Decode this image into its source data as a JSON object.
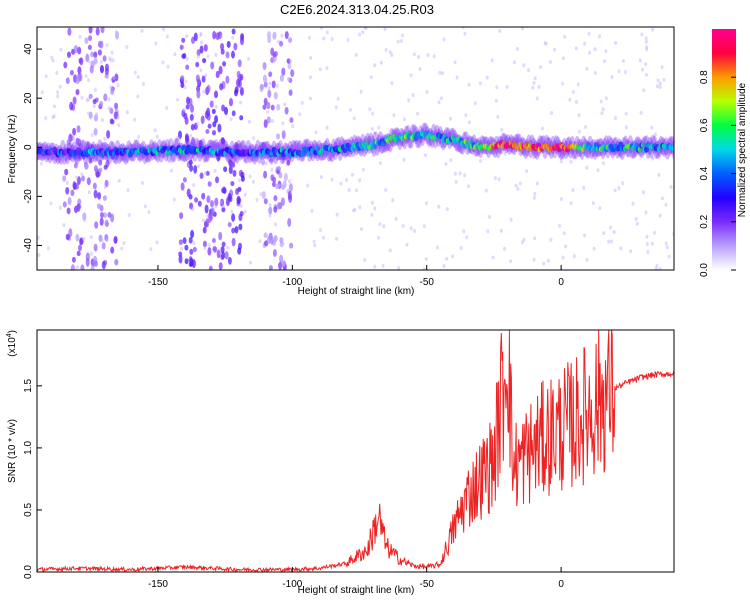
{
  "title": "C2E6.2024.313.04.25.R03",
  "chart_data": [
    {
      "type": "heatmap",
      "title": "C2E6.2024.313.04.25.R03",
      "xlabel": "Height of straight line (km)",
      "ylabel": "Frequency (Hz)",
      "xlim": [
        -195,
        42
      ],
      "ylim": [
        -50,
        49
      ],
      "xticks": [
        -150,
        -100,
        -50,
        0
      ],
      "yticks": [
        40,
        20,
        0,
        -20,
        -40
      ],
      "colorbar": {
        "label": "Normalized spectral amplitude",
        "range": [
          0.0,
          1.0
        ],
        "ticks": [
          0.0,
          0.2,
          0.4,
          0.6,
          0.8
        ],
        "colormap": [
          "#ffffff",
          "#b9a0ff",
          "#7a2cff",
          "#2200ff",
          "#0060ff",
          "#00d8e8",
          "#00ff40",
          "#b8ff00",
          "#ff9a00",
          "#ff0040",
          "#ff0090"
        ]
      },
      "ridge": {
        "x": [
          -195,
          -180,
          -160,
          -140,
          -120,
          -100,
          -85,
          -70,
          -60,
          -50,
          -40,
          -30,
          -20,
          -10,
          0,
          10,
          20,
          30,
          42
        ],
        "frequency_hz": [
          -2,
          -2,
          -2,
          -1,
          -2,
          -2,
          -1,
          1,
          4,
          5,
          3,
          0,
          1,
          0,
          0,
          0,
          0,
          0,
          0
        ],
        "amplitude": [
          0.3,
          0.35,
          0.4,
          0.45,
          0.35,
          0.4,
          0.45,
          0.5,
          0.55,
          0.5,
          0.5,
          0.55,
          0.95,
          0.85,
          0.9,
          0.55,
          0.5,
          0.5,
          0.45
        ]
      },
      "scatter_bands": [
        {
          "x_range": [
            -185,
            -165
          ],
          "amplitude": 0.1
        },
        {
          "x_range": [
            -142,
            -118
          ],
          "amplitude": 0.15
        },
        {
          "x_range": [
            -112,
            -100
          ],
          "amplitude": 0.08
        }
      ]
    },
    {
      "type": "line",
      "xlabel": "Height of straight line (km)",
      "ylabel": "SNR (10 * v/v)",
      "y_multiplier_label": "(x10",
      "y_multiplier_exp": "4",
      "xlim": [
        -195,
        42
      ],
      "ylim": [
        0.0,
        1.95
      ],
      "xticks": [
        -150,
        -100,
        -50,
        0
      ],
      "yticks": [
        0.0,
        0.5,
        1.0,
        1.5
      ],
      "line_color": "#ee2222",
      "x": [
        -195,
        -180,
        -160,
        -140,
        -120,
        -100,
        -90,
        -80,
        -72,
        -68,
        -65,
        -60,
        -55,
        -50,
        -45,
        -40,
        -35,
        -30,
        -25,
        -21,
        -20,
        -18,
        -15,
        -10,
        -5,
        0,
        5,
        10,
        15,
        20,
        25,
        30,
        35,
        42
      ],
      "values": [
        0.02,
        0.03,
        0.02,
        0.04,
        0.02,
        0.02,
        0.03,
        0.07,
        0.18,
        0.45,
        0.2,
        0.1,
        0.05,
        0.04,
        0.06,
        0.35,
        0.6,
        0.75,
        0.9,
        1.6,
        1.95,
        0.85,
        0.9,
        1.0,
        1.1,
        1.15,
        1.2,
        1.3,
        1.4,
        1.48,
        1.53,
        1.57,
        1.59,
        1.6
      ]
    }
  ]
}
